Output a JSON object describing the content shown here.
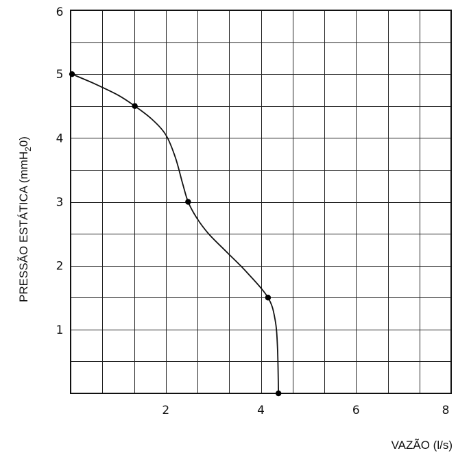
{
  "chart_data": {
    "type": "line",
    "title": "",
    "xlabel": "VAZÃO (l/s)",
    "ylabel_main": "PRESSÃO ESTÁTICA (mmH",
    "ylabel_sub": "2",
    "ylabel_end": "0)",
    "xlim": [
      0,
      8
    ],
    "ylim": [
      0,
      6
    ],
    "x_ticks": [
      2,
      4,
      6,
      8
    ],
    "y_ticks": [
      1,
      2,
      3,
      4,
      5,
      6
    ],
    "grid": true,
    "grid_step_x": 0.6667,
    "grid_step_y": 0.5,
    "series": [
      {
        "points": [
          {
            "x": 0.03,
            "y": 5.0
          },
          {
            "x": 1.35,
            "y": 4.5
          },
          {
            "x": 2.47,
            "y": 3.0
          },
          {
            "x": 4.15,
            "y": 1.5
          },
          {
            "x": 4.37,
            "y": 0.0
          }
        ],
        "curve": [
          [
            0.03,
            5.0
          ],
          [
            0.5,
            4.85
          ],
          [
            1.0,
            4.67
          ],
          [
            1.35,
            4.5
          ],
          [
            1.7,
            4.3
          ],
          [
            2.0,
            4.05
          ],
          [
            2.2,
            3.7
          ],
          [
            2.35,
            3.3
          ],
          [
            2.47,
            3.0
          ],
          [
            2.65,
            2.75
          ],
          [
            2.9,
            2.5
          ],
          [
            3.3,
            2.2
          ],
          [
            3.7,
            1.9
          ],
          [
            4.15,
            1.5
          ],
          [
            4.3,
            1.15
          ],
          [
            4.35,
            0.7
          ],
          [
            4.37,
            0.0
          ]
        ]
      }
    ]
  }
}
